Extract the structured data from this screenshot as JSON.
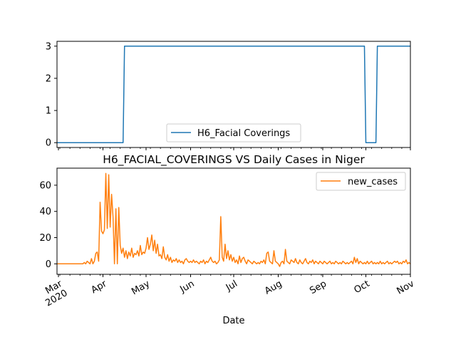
{
  "chart_data": [
    {
      "type": "line",
      "title": "",
      "xlabel": "",
      "ylabel": "",
      "ylim": [
        -0.15,
        3.15
      ],
      "xlim": [
        "2020-02-29",
        "2020-11-01"
      ],
      "yticks": [
        0,
        1,
        2,
        3
      ],
      "grid": false,
      "legend_placement": "lower-center",
      "series": [
        {
          "name": "H6_Facial Coverings",
          "color": "#1f77b4",
          "points": [
            [
              "2020-02-29",
              0
            ],
            [
              "2020-04-15",
              0
            ],
            [
              "2020-04-16",
              3
            ],
            [
              "2020-09-30",
              3
            ],
            [
              "2020-10-01",
              0
            ],
            [
              "2020-10-08",
              0
            ],
            [
              "2020-10-09",
              3
            ],
            [
              "2020-11-01",
              3
            ]
          ]
        }
      ]
    },
    {
      "type": "line",
      "title": "H6_FACIAL_COVERINGS VS Daily Cases in Niger",
      "xlabel": "Date",
      "ylabel": "",
      "ylim": [
        -8,
        73
      ],
      "xlim": [
        "2020-02-29",
        "2020-11-01"
      ],
      "yticks": [
        0,
        20,
        40,
        60
      ],
      "xtick_labels": [
        "Mar\n2020",
        "Apr",
        "May",
        "Jun",
        "Jul",
        "Aug",
        "Sep",
        "Oct",
        "Nov"
      ],
      "xtick_dates": [
        "2020-03-01",
        "2020-04-01",
        "2020-05-01",
        "2020-06-01",
        "2020-07-01",
        "2020-08-01",
        "2020-09-01",
        "2020-10-01",
        "2020-11-01"
      ],
      "grid": false,
      "legend_placement": "upper-right",
      "series": [
        {
          "name": "new_cases",
          "color": "#ff7f0e",
          "points": [
            [
              "2020-02-29",
              0
            ],
            [
              "2020-03-18",
              0
            ],
            [
              "2020-03-19",
              1
            ],
            [
              "2020-03-20",
              0
            ],
            [
              "2020-03-21",
              2
            ],
            [
              "2020-03-22",
              1
            ],
            [
              "2020-03-23",
              0
            ],
            [
              "2020-03-24",
              4
            ],
            [
              "2020-03-25",
              0
            ],
            [
              "2020-03-26",
              2
            ],
            [
              "2020-03-27",
              8
            ],
            [
              "2020-03-28",
              9
            ],
            [
              "2020-03-29",
              2
            ],
            [
              "2020-03-30",
              47
            ],
            [
              "2020-03-31",
              25
            ],
            [
              "2020-04-01",
              23
            ],
            [
              "2020-04-02",
              26
            ],
            [
              "2020-04-03",
              69
            ],
            [
              "2020-04-04",
              27
            ],
            [
              "2020-04-05",
              68
            ],
            [
              "2020-04-06",
              28
            ],
            [
              "2020-04-07",
              53
            ],
            [
              "2020-04-08",
              36
            ],
            [
              "2020-04-09",
              0
            ],
            [
              "2020-04-10",
              42
            ],
            [
              "2020-04-11",
              0
            ],
            [
              "2020-04-12",
              43
            ],
            [
              "2020-04-13",
              14
            ],
            [
              "2020-04-14",
              8
            ],
            [
              "2020-04-15",
              12
            ],
            [
              "2020-04-16",
              5
            ],
            [
              "2020-04-17",
              10
            ],
            [
              "2020-04-18",
              4
            ],
            [
              "2020-04-19",
              9
            ],
            [
              "2020-04-20",
              6
            ],
            [
              "2020-04-21",
              12
            ],
            [
              "2020-04-22",
              5
            ],
            [
              "2020-04-23",
              8
            ],
            [
              "2020-04-24",
              7
            ],
            [
              "2020-04-25",
              10
            ],
            [
              "2020-04-26",
              6
            ],
            [
              "2020-04-27",
              14
            ],
            [
              "2020-04-28",
              7
            ],
            [
              "2020-04-29",
              9
            ],
            [
              "2020-04-30",
              8
            ],
            [
              "2020-05-01",
              12
            ],
            [
              "2020-05-02",
              20
            ],
            [
              "2020-05-03",
              11
            ],
            [
              "2020-05-04",
              15
            ],
            [
              "2020-05-05",
              22
            ],
            [
              "2020-05-06",
              10
            ],
            [
              "2020-05-07",
              18
            ],
            [
              "2020-05-08",
              8
            ],
            [
              "2020-05-09",
              15
            ],
            [
              "2020-05-10",
              6
            ],
            [
              "2020-05-11",
              7
            ],
            [
              "2020-05-12",
              4
            ],
            [
              "2020-05-13",
              13
            ],
            [
              "2020-05-14",
              5
            ],
            [
              "2020-05-15",
              3
            ],
            [
              "2020-05-16",
              7
            ],
            [
              "2020-05-17",
              2
            ],
            [
              "2020-05-18",
              5
            ],
            [
              "2020-05-19",
              1
            ],
            [
              "2020-05-20",
              3
            ],
            [
              "2020-05-21",
              2
            ],
            [
              "2020-05-22",
              4
            ],
            [
              "2020-05-23",
              1
            ],
            [
              "2020-05-24",
              3
            ],
            [
              "2020-05-25",
              1
            ],
            [
              "2020-05-26",
              2
            ],
            [
              "2020-05-27",
              0
            ],
            [
              "2020-05-28",
              3
            ],
            [
              "2020-05-29",
              4
            ],
            [
              "2020-05-30",
              2
            ],
            [
              "2020-05-31",
              1
            ],
            [
              "2020-06-01",
              2
            ],
            [
              "2020-06-02",
              1
            ],
            [
              "2020-06-03",
              3
            ],
            [
              "2020-06-04",
              1
            ],
            [
              "2020-06-05",
              2
            ],
            [
              "2020-06-06",
              1
            ],
            [
              "2020-06-07",
              0
            ],
            [
              "2020-06-08",
              2
            ],
            [
              "2020-06-09",
              1
            ],
            [
              "2020-06-10",
              3
            ],
            [
              "2020-06-11",
              0
            ],
            [
              "2020-06-12",
              2
            ],
            [
              "2020-06-13",
              1
            ],
            [
              "2020-06-14",
              3
            ],
            [
              "2020-06-15",
              5
            ],
            [
              "2020-06-16",
              2
            ],
            [
              "2020-06-17",
              1
            ],
            [
              "2020-06-18",
              2
            ],
            [
              "2020-06-19",
              0
            ],
            [
              "2020-06-20",
              1
            ],
            [
              "2020-06-21",
              3
            ],
            [
              "2020-06-22",
              36
            ],
            [
              "2020-06-23",
              5
            ],
            [
              "2020-06-24",
              2
            ],
            [
              "2020-06-25",
              15
            ],
            [
              "2020-06-26",
              4
            ],
            [
              "2020-06-27",
              10
            ],
            [
              "2020-06-28",
              3
            ],
            [
              "2020-06-29",
              7
            ],
            [
              "2020-06-30",
              2
            ],
            [
              "2020-07-01",
              5
            ],
            [
              "2020-07-02",
              1
            ],
            [
              "2020-07-03",
              3
            ],
            [
              "2020-07-04",
              0
            ],
            [
              "2020-07-05",
              6
            ],
            [
              "2020-07-06",
              1
            ],
            [
              "2020-07-07",
              4
            ],
            [
              "2020-07-08",
              5
            ],
            [
              "2020-07-09",
              2
            ],
            [
              "2020-07-10",
              0
            ],
            [
              "2020-07-11",
              3
            ],
            [
              "2020-07-12",
              2
            ],
            [
              "2020-07-13",
              1
            ],
            [
              "2020-07-14",
              0
            ],
            [
              "2020-07-15",
              2
            ],
            [
              "2020-07-16",
              1
            ],
            [
              "2020-07-17",
              0
            ],
            [
              "2020-07-18",
              1
            ],
            [
              "2020-07-19",
              0
            ],
            [
              "2020-07-20",
              2
            ],
            [
              "2020-07-21",
              1
            ],
            [
              "2020-07-22",
              3
            ],
            [
              "2020-07-23",
              0
            ],
            [
              "2020-07-24",
              8
            ],
            [
              "2020-07-25",
              9
            ],
            [
              "2020-07-26",
              2
            ],
            [
              "2020-07-27",
              1
            ],
            [
              "2020-07-28",
              0
            ],
            [
              "2020-07-29",
              10
            ],
            [
              "2020-07-30",
              2
            ],
            [
              "2020-07-31",
              1
            ],
            [
              "2020-08-01",
              0
            ],
            [
              "2020-08-02",
              -2
            ],
            [
              "2020-08-03",
              1
            ],
            [
              "2020-08-04",
              2
            ],
            [
              "2020-08-05",
              0
            ],
            [
              "2020-08-06",
              11
            ],
            [
              "2020-08-07",
              2
            ],
            [
              "2020-08-08",
              1
            ],
            [
              "2020-08-09",
              0
            ],
            [
              "2020-08-10",
              3
            ],
            [
              "2020-08-11",
              2
            ],
            [
              "2020-08-12",
              1
            ],
            [
              "2020-08-13",
              4
            ],
            [
              "2020-08-14",
              1
            ],
            [
              "2020-08-15",
              0
            ],
            [
              "2020-08-16",
              3
            ],
            [
              "2020-08-17",
              1
            ],
            [
              "2020-08-18",
              0
            ],
            [
              "2020-08-19",
              2
            ],
            [
              "2020-08-20",
              4
            ],
            [
              "2020-08-21",
              1
            ],
            [
              "2020-08-22",
              0
            ],
            [
              "2020-08-23",
              2
            ],
            [
              "2020-08-24",
              1
            ],
            [
              "2020-08-25",
              3
            ],
            [
              "2020-08-26",
              0
            ],
            [
              "2020-08-27",
              2
            ],
            [
              "2020-08-28",
              1
            ],
            [
              "2020-08-29",
              0
            ],
            [
              "2020-08-30",
              2
            ],
            [
              "2020-08-31",
              1
            ],
            [
              "2020-09-01",
              0
            ],
            [
              "2020-09-02",
              2
            ],
            [
              "2020-09-03",
              1
            ],
            [
              "2020-09-04",
              0
            ],
            [
              "2020-09-05",
              1
            ],
            [
              "2020-09-06",
              2
            ],
            [
              "2020-09-07",
              0
            ],
            [
              "2020-09-08",
              1
            ],
            [
              "2020-09-09",
              0
            ],
            [
              "2020-09-10",
              2
            ],
            [
              "2020-09-11",
              1
            ],
            [
              "2020-09-12",
              0
            ],
            [
              "2020-09-13",
              1
            ],
            [
              "2020-09-14",
              0
            ],
            [
              "2020-09-15",
              2
            ],
            [
              "2020-09-16",
              1
            ],
            [
              "2020-09-17",
              0
            ],
            [
              "2020-09-18",
              1
            ],
            [
              "2020-09-19",
              0
            ],
            [
              "2020-09-20",
              1
            ],
            [
              "2020-09-21",
              2
            ],
            [
              "2020-09-22",
              0
            ],
            [
              "2020-09-23",
              5
            ],
            [
              "2020-09-24",
              1
            ],
            [
              "2020-09-25",
              4
            ],
            [
              "2020-09-26",
              0
            ],
            [
              "2020-09-27",
              2
            ],
            [
              "2020-09-28",
              1
            ],
            [
              "2020-09-29",
              0
            ],
            [
              "2020-09-30",
              1
            ],
            [
              "2020-10-01",
              0
            ],
            [
              "2020-10-02",
              2
            ],
            [
              "2020-10-03",
              0
            ],
            [
              "2020-10-04",
              1
            ],
            [
              "2020-10-05",
              2
            ],
            [
              "2020-10-06",
              0
            ],
            [
              "2020-10-07",
              1
            ],
            [
              "2020-10-08",
              0
            ],
            [
              "2020-10-09",
              1
            ],
            [
              "2020-10-10",
              0
            ],
            [
              "2020-10-11",
              2
            ],
            [
              "2020-10-12",
              0
            ],
            [
              "2020-10-13",
              1
            ],
            [
              "2020-10-14",
              0
            ],
            [
              "2020-10-15",
              1
            ],
            [
              "2020-10-16",
              2
            ],
            [
              "2020-10-17",
              0
            ],
            [
              "2020-10-18",
              1
            ],
            [
              "2020-10-19",
              0
            ],
            [
              "2020-10-20",
              1
            ],
            [
              "2020-10-21",
              2
            ],
            [
              "2020-10-22",
              1
            ],
            [
              "2020-10-23",
              2
            ],
            [
              "2020-10-24",
              0
            ],
            [
              "2020-10-25",
              1
            ],
            [
              "2020-10-26",
              0
            ],
            [
              "2020-10-27",
              2
            ],
            [
              "2020-10-28",
              1
            ],
            [
              "2020-10-29",
              3
            ],
            [
              "2020-10-30",
              0
            ],
            [
              "2020-10-31",
              1
            ],
            [
              "2020-11-01",
              0
            ]
          ]
        }
      ]
    }
  ]
}
